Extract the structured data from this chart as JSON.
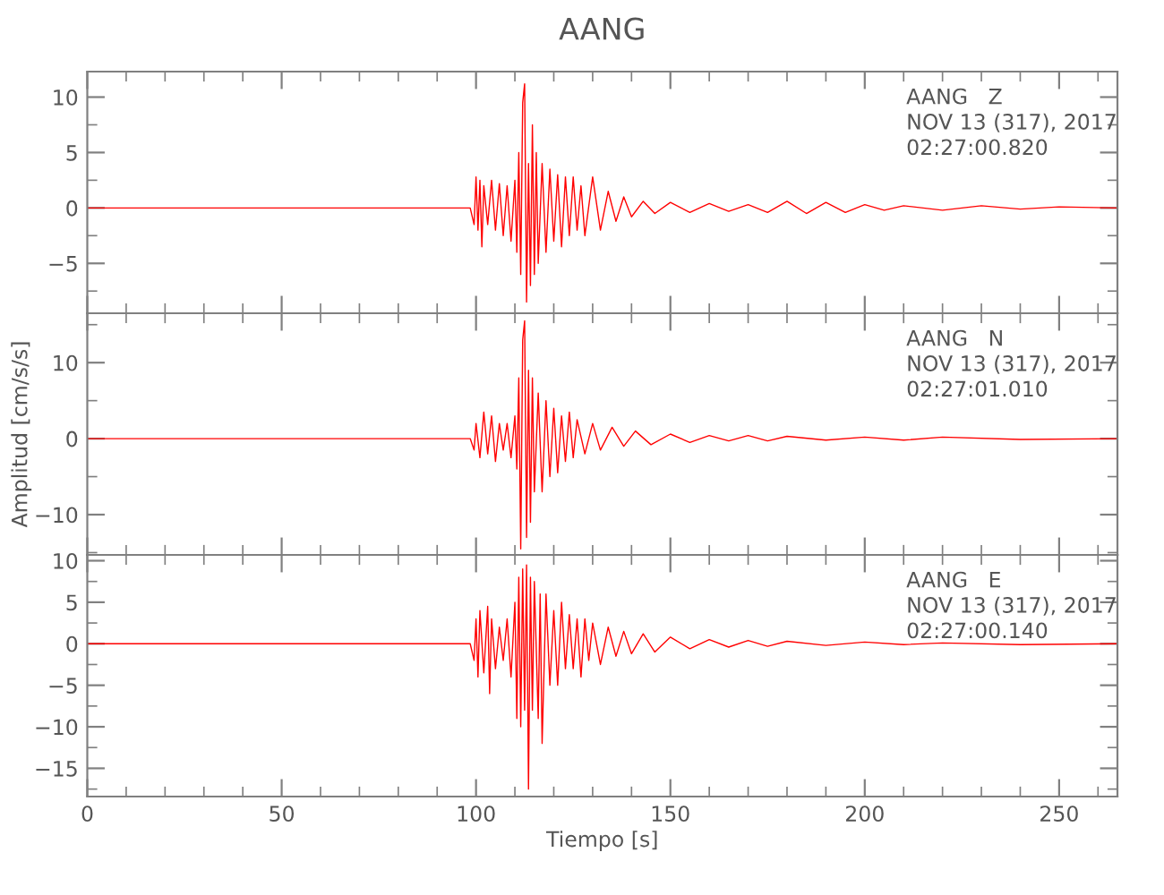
{
  "chart_data": [
    {
      "type": "line",
      "title": "AANG",
      "xlim": [
        0,
        265
      ],
      "xticks": [
        0,
        50,
        100,
        150,
        200,
        250
      ],
      "ylim": [
        -9.5,
        12.3
      ],
      "yticks": [
        -5,
        0,
        5,
        10
      ],
      "tick_labels": "y",
      "grid": false,
      "legend": false,
      "annotations": [
        "AANG   Z",
        "NOV 13 (317), 2017",
        "02:27:00.820"
      ],
      "series": [
        {
          "color": "#ff0000",
          "x": [
            0,
            50,
            98.5,
            99.5,
            100,
            100.5,
            101,
            101.5,
            102,
            103,
            104,
            105,
            106,
            107,
            108,
            109,
            110,
            110.5,
            111,
            111.5,
            112,
            112.5,
            113,
            113.5,
            114,
            114.5,
            115,
            115.5,
            116,
            117,
            118,
            119,
            120,
            121,
            122,
            123,
            124,
            125,
            126,
            127,
            128,
            130,
            132,
            134,
            136,
            138,
            140,
            143,
            146,
            150,
            155,
            160,
            165,
            170,
            175,
            180,
            185,
            190,
            195,
            200,
            205,
            210,
            220,
            230,
            240,
            250,
            265
          ],
          "values": [
            0,
            0,
            0,
            -1.5,
            2.8,
            -2,
            2.5,
            -3.5,
            2,
            -1.5,
            2.5,
            -2,
            2.2,
            -2.5,
            2,
            -3,
            2.5,
            -4,
            5,
            -6,
            9.5,
            11.2,
            -8.5,
            4,
            -7,
            7.5,
            -6,
            5,
            -5,
            4,
            -4,
            3.5,
            -3,
            3,
            -3.5,
            2.8,
            -2.5,
            2.8,
            -2,
            2,
            -2.5,
            2.8,
            -2,
            1.5,
            -1.2,
            1,
            -0.8,
            0.6,
            -0.5,
            0.5,
            -0.4,
            0.4,
            -0.3,
            0.3,
            -0.4,
            0.6,
            -0.5,
            0.5,
            -0.4,
            0.3,
            -0.2,
            0.2,
            -0.2,
            0.2,
            -0.1,
            0.1,
            0
          ]
        }
      ]
    },
    {
      "type": "line",
      "ylabel": "Amplitud [cm/s/s]",
      "xlim": [
        0,
        265
      ],
      "xticks": [
        0,
        50,
        100,
        150,
        200,
        250
      ],
      "ylim": [
        -15.3,
        16.5
      ],
      "yticks": [
        -10,
        0,
        10
      ],
      "tick_labels": "y",
      "grid": false,
      "legend": false,
      "annotations": [
        "AANG   N",
        "NOV 13 (317), 2017",
        "02:27:01.010"
      ],
      "series": [
        {
          "color": "#ff0000",
          "x": [
            0,
            50,
            98.5,
            99.5,
            100,
            101,
            102,
            103,
            104,
            105,
            106,
            107,
            108,
            109,
            110,
            110.5,
            111,
            111.5,
            112,
            112.5,
            113,
            113.5,
            114,
            114.5,
            115,
            116,
            117,
            118,
            119,
            120,
            121,
            122,
            123,
            124,
            125,
            126,
            128,
            130,
            132,
            135,
            138,
            141,
            145,
            150,
            155,
            160,
            165,
            170,
            175,
            180,
            190,
            200,
            210,
            220,
            240,
            265
          ],
          "values": [
            0,
            0,
            0,
            -1.5,
            2,
            -2.5,
            3.5,
            -2,
            3,
            -3,
            2,
            -1.5,
            2,
            -2.5,
            3,
            -4,
            8,
            -14.5,
            13,
            15.5,
            -13,
            9,
            -11,
            8,
            -7,
            6,
            -7,
            5,
            -5,
            4,
            -4.5,
            3,
            -3,
            3.5,
            -2.5,
            2.5,
            -2,
            2,
            -1.5,
            1.5,
            -1,
            1,
            -0.8,
            0.6,
            -0.5,
            0.4,
            -0.3,
            0.4,
            -0.3,
            0.3,
            -0.2,
            0.2,
            -0.2,
            0.2,
            -0.1,
            0
          ]
        }
      ]
    },
    {
      "type": "line",
      "xlabel": "Tiempo [s]",
      "xlim": [
        0,
        265
      ],
      "xticks": [
        0,
        50,
        100,
        150,
        200,
        250
      ],
      "ylim": [
        -18.4,
        10.7
      ],
      "yticks": [
        -15,
        -10,
        -5,
        0,
        5,
        10
      ],
      "grid": false,
      "legend": false,
      "annotations": [
        "AANG   E",
        "NOV 13 (317), 2017",
        "02:27:00.140"
      ],
      "series": [
        {
          "color": "#ff0000",
          "x": [
            0,
            50,
            98.5,
            99.5,
            100,
            100.5,
            101,
            102,
            103,
            103.5,
            104,
            105,
            106,
            107,
            108,
            109,
            110,
            110.5,
            111,
            111.5,
            112,
            112.5,
            113,
            113.5,
            114,
            114.5,
            115,
            116,
            116.5,
            117,
            118,
            119,
            120,
            121,
            122,
            123,
            124,
            125,
            126,
            127,
            128,
            129,
            130,
            132,
            134,
            136,
            138,
            140,
            143,
            146,
            150,
            155,
            160,
            165,
            170,
            175,
            180,
            190,
            200,
            210,
            220,
            240,
            265
          ],
          "values": [
            0,
            0,
            0,
            -2,
            3,
            -4,
            4,
            -3.5,
            4.5,
            -6,
            3,
            -3,
            2,
            -2,
            3,
            -4,
            5,
            -9,
            8,
            -10,
            9,
            -8,
            9.5,
            -17.5,
            8,
            -8,
            7.5,
            -9,
            6,
            -12,
            6,
            -5,
            4,
            -5,
            5,
            -3,
            3.5,
            -3,
            3,
            -4,
            3,
            -2,
            2.5,
            -2.5,
            2,
            -1.5,
            1.5,
            -1.2,
            1.2,
            -1,
            0.8,
            -0.6,
            0.5,
            -0.4,
            0.4,
            -0.3,
            0.3,
            -0.2,
            0.2,
            -0.1,
            0.1,
            -0.1,
            0
          ]
        }
      ]
    }
  ]
}
